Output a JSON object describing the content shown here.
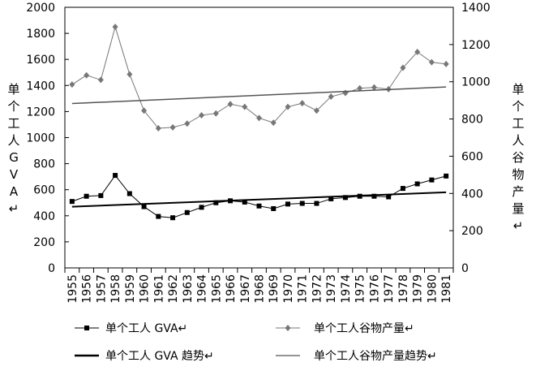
{
  "chart_data": {
    "type": "line",
    "x": [
      "1955",
      "1956",
      "1957",
      "1958",
      "1959",
      "1960",
      "1961",
      "1962",
      "1963",
      "1964",
      "1965",
      "1966",
      "1967",
      "1968",
      "1969",
      "1970",
      "1971",
      "1972",
      "1973",
      "1974",
      "1975",
      "1976",
      "1977",
      "1978",
      "1979",
      "1980",
      "1981"
    ],
    "left_axis": {
      "label": "单个工人GVA↵",
      "ylim": [
        0,
        2000
      ],
      "ticks": [
        0,
        200,
        400,
        600,
        800,
        1000,
        1200,
        1400,
        1600,
        1800,
        2000
      ]
    },
    "right_axis": {
      "label": "单个工人谷物产量↵",
      "ylim": [
        0,
        1400
      ],
      "ticks": [
        0,
        200,
        400,
        600,
        800,
        1000,
        1200,
        1400
      ]
    },
    "series": [
      {
        "name": "单个工人 GVA↵",
        "axis": "left",
        "marker": "square",
        "color": "#000000",
        "values": [
          510,
          550,
          555,
          710,
          570,
          470,
          395,
          385,
          425,
          465,
          500,
          515,
          505,
          475,
          455,
          490,
          495,
          495,
          530,
          540,
          550,
          550,
          545,
          610,
          645,
          675,
          705
        ]
      },
      {
        "name": "单个工人谷物产量↵",
        "axis": "right",
        "marker": "diamond",
        "color": "#777777",
        "values": [
          985,
          1035,
          1010,
          1295,
          1040,
          845,
          750,
          755,
          775,
          820,
          830,
          880,
          865,
          805,
          780,
          865,
          885,
          845,
          920,
          940,
          965,
          970,
          960,
          1075,
          1160,
          1105,
          1095
        ]
      },
      {
        "name": "单个工人 GVA 趋势↵",
        "axis": "left",
        "type": "trend",
        "color": "#000000",
        "start": 470,
        "end": 580
      },
      {
        "name": "单个工人谷物产量趋势↵",
        "axis": "right",
        "type": "trend",
        "color": "#555555",
        "start": 883,
        "end": 972
      }
    ],
    "legend": {
      "placement": "bottom"
    },
    "grid": false
  }
}
